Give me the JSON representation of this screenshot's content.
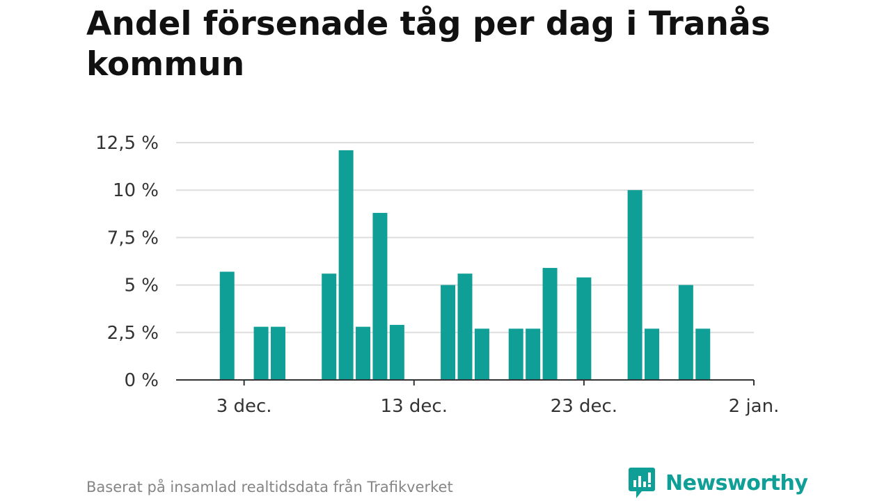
{
  "title": "Andel försenade tåg per dag i Tranås kommun",
  "footer": {
    "source": "Baserat på insamlad realtidsdata från Trafikverket"
  },
  "brand": {
    "name": "Newsworthy",
    "icon": "newsworthy-logo-icon",
    "color": "#0f9f96"
  },
  "chart_data": {
    "type": "bar",
    "x": [
      "2023-12-02",
      "2023-12-03",
      "2023-12-04",
      "2023-12-05",
      "2023-12-06",
      "2023-12-07",
      "2023-12-08",
      "2023-12-09",
      "2023-12-10",
      "2023-12-11",
      "2023-12-12",
      "2023-12-13",
      "2023-12-14",
      "2023-12-15",
      "2023-12-16",
      "2023-12-17",
      "2023-12-18",
      "2023-12-19",
      "2023-12-20",
      "2023-12-21",
      "2023-12-22",
      "2023-12-23",
      "2023-12-24",
      "2023-12-25",
      "2023-12-26",
      "2023-12-27",
      "2023-12-28",
      "2023-12-29",
      "2023-12-30",
      "2023-12-31",
      "2024-01-01"
    ],
    "values": [
      5.7,
      0,
      2.8,
      2.8,
      0,
      0,
      5.6,
      12.1,
      2.8,
      8.8,
      2.9,
      0,
      0,
      5.0,
      5.6,
      2.7,
      0,
      2.7,
      2.7,
      5.9,
      0,
      5.4,
      0,
      0,
      10.0,
      2.7,
      0,
      5.0,
      2.7,
      0,
      0
    ],
    "x_ticks": [
      {
        "date": "2023-12-03",
        "label": "3 dec."
      },
      {
        "date": "2023-12-13",
        "label": "13 dec."
      },
      {
        "date": "2023-12-23",
        "label": "23 dec."
      },
      {
        "date": "2024-01-02",
        "label": "2 jan."
      }
    ],
    "y_ticks": [
      {
        "value": 0,
        "label": "0 %"
      },
      {
        "value": 2.5,
        "label": "2,5 %"
      },
      {
        "value": 5,
        "label": "5 %"
      },
      {
        "value": 7.5,
        "label": "7,5 %"
      },
      {
        "value": 10,
        "label": "10 %"
      },
      {
        "value": 12.5,
        "label": "12,5 %"
      }
    ],
    "ylim": [
      0,
      12.5
    ],
    "xlim": [
      "2023-11-29",
      "2024-01-02"
    ],
    "grid": true,
    "bar_color": "#0f9f96"
  }
}
